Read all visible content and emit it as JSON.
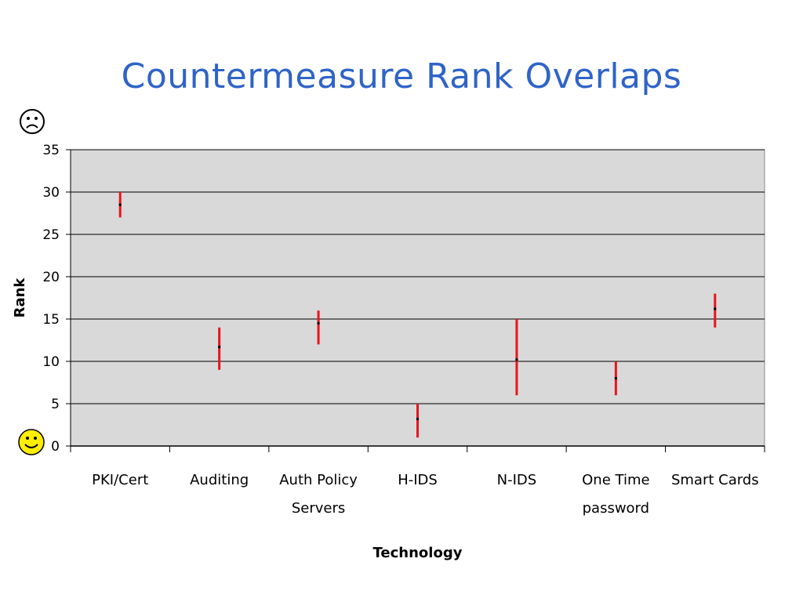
{
  "slide": {
    "title": "Countermeasure Rank Overlaps",
    "top_marker": "sad-face",
    "bottom_marker": "smiley-face"
  },
  "colors": {
    "title": "#2f64c7",
    "plot_background": "#d9d9d9",
    "range_bar": "#e8141c",
    "median_dot": "#000000",
    "smiley_fill": "#ffee00"
  },
  "chart_data": {
    "type": "range",
    "title": "",
    "xlabel": "Technology",
    "ylabel": "Rank",
    "ylim": [
      0,
      35
    ],
    "yticks": [
      0,
      5,
      10,
      15,
      20,
      25,
      30,
      35
    ],
    "grid": true,
    "categories": [
      {
        "lines": [
          "PKI/Cert"
        ]
      },
      {
        "lines": [
          "Auditing"
        ]
      },
      {
        "lines": [
          "Auth Policy",
          "Servers"
        ]
      },
      {
        "lines": [
          "H-IDS"
        ]
      },
      {
        "lines": [
          "N-IDS"
        ]
      },
      {
        "lines": [
          "One Time",
          "password"
        ]
      },
      {
        "lines": [
          "Smart Cards"
        ]
      }
    ],
    "series": [
      {
        "low": 27,
        "high": 30,
        "mid": 28.5
      },
      {
        "low": 9,
        "high": 14,
        "mid": 11.7
      },
      {
        "low": 12,
        "high": 16,
        "mid": 14.5
      },
      {
        "low": 1,
        "high": 5,
        "mid": 3.2
      },
      {
        "low": 6,
        "high": 15,
        "mid": 10.2
      },
      {
        "low": 6,
        "high": 10,
        "mid": 8
      },
      {
        "low": 14,
        "high": 18,
        "mid": 16.2
      }
    ]
  }
}
